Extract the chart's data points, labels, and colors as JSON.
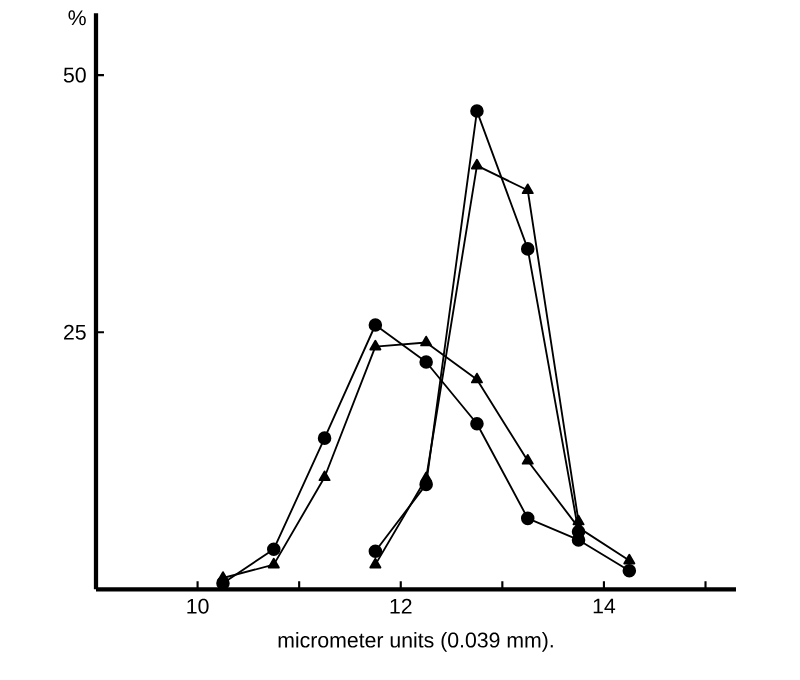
{
  "chart_data": {
    "type": "line",
    "ylabel": "%",
    "xlabel": "micrometer units (0.039 mm).",
    "x": [
      10.25,
      10.75,
      11.25,
      11.75,
      12.25,
      12.75,
      13.25,
      13.75,
      14.25
    ],
    "series": [
      {
        "color": "#000000",
        "marker": "circle",
        "values": [
          0.6,
          3.9,
          14.7,
          25.7,
          22.1,
          16.1,
          6.9,
          4.8,
          1.8
        ]
      },
      {
        "color": "#000000",
        "marker": "triangle",
        "values": [
          1.1,
          2.4,
          10.9,
          23.6,
          24.0,
          20.4,
          12.5,
          6.0,
          2.8
        ]
      },
      {
        "color": "#000000",
        "marker": "circle",
        "values": [
          null,
          null,
          null,
          3.7,
          10.2,
          46.5,
          33.1,
          5.6,
          null
        ]
      },
      {
        "color": "#000000",
        "marker": "triangle",
        "values": [
          null,
          null,
          null,
          2.4,
          10.8,
          41.2,
          38.8,
          6.6,
          null
        ]
      }
    ],
    "xlim": [
      9,
      15.3
    ],
    "ylim": [
      0,
      56
    ],
    "xticks": [
      10,
      {
        "value": 11,
        "label": null
      },
      12,
      {
        "value": 13,
        "label": null
      },
      14,
      {
        "value": 15,
        "label": null
      }
    ],
    "yticks": [
      25,
      50
    ],
    "grid": false
  }
}
